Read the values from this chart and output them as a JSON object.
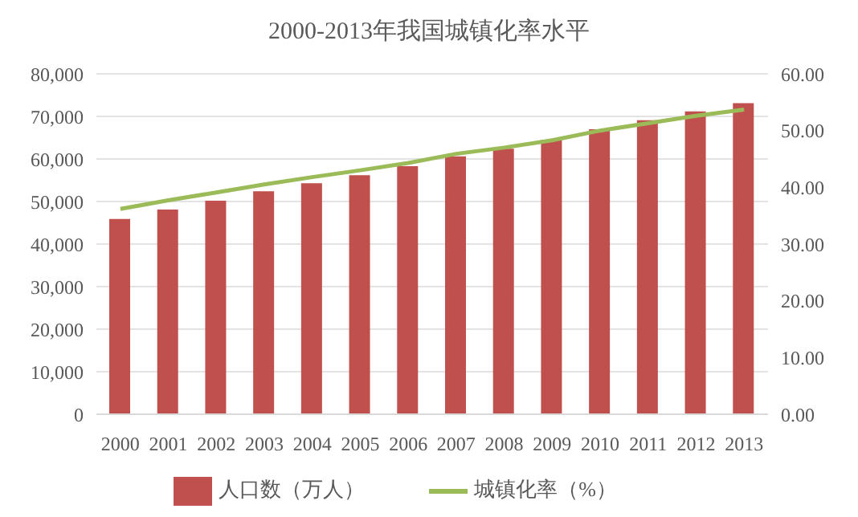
{
  "chart_data": {
    "type": "bar",
    "title": "2000-2013年我国城镇化率水平",
    "categories": [
      "2000",
      "2001",
      "2002",
      "2003",
      "2004",
      "2005",
      "2006",
      "2007",
      "2008",
      "2009",
      "2010",
      "2011",
      "2012",
      "2013"
    ],
    "series": [
      {
        "name": "人口数（万人）",
        "color": "#c0504d",
        "values": [
          45900,
          48100,
          50200,
          52400,
          54300,
          56200,
          58300,
          60600,
          62400,
          64500,
          67000,
          69100,
          71200,
          73100
        ]
      },
      {
        "name": "城镇化率（%）",
        "type": "line",
        "axis": "y2",
        "color": "#9bbb59",
        "values": [
          36.2,
          37.7,
          39.1,
          40.5,
          41.8,
          43.0,
          44.3,
          45.9,
          47.0,
          48.3,
          50.0,
          51.3,
          52.6,
          53.7
        ]
      }
    ],
    "ylim": [
      0,
      80000
    ],
    "yticks": [
      {
        "value": 0,
        "label": "0"
      },
      {
        "value": 10000,
        "label": "10,000"
      },
      {
        "value": 20000,
        "label": "20,000"
      },
      {
        "value": 30000,
        "label": "30,000"
      },
      {
        "value": 40000,
        "label": "40,000"
      },
      {
        "value": 50000,
        "label": "50,000"
      },
      {
        "value": 60000,
        "label": "60,000"
      },
      {
        "value": 70000,
        "label": "70,000"
      },
      {
        "value": 80000,
        "label": "80,000"
      }
    ],
    "y2lim": [
      0,
      60
    ],
    "y2ticks": [
      {
        "value": 0,
        "label": "0.00"
      },
      {
        "value": 10,
        "label": "10.00"
      },
      {
        "value": 20,
        "label": "20.00"
      },
      {
        "value": 30,
        "label": "30.00"
      },
      {
        "value": 40,
        "label": "40.00"
      },
      {
        "value": 50,
        "label": "50.00"
      },
      {
        "value": 60,
        "label": "60.00"
      }
    ],
    "grid": "y",
    "legend": "bottom",
    "marker": "none",
    "line_style": "solid"
  }
}
